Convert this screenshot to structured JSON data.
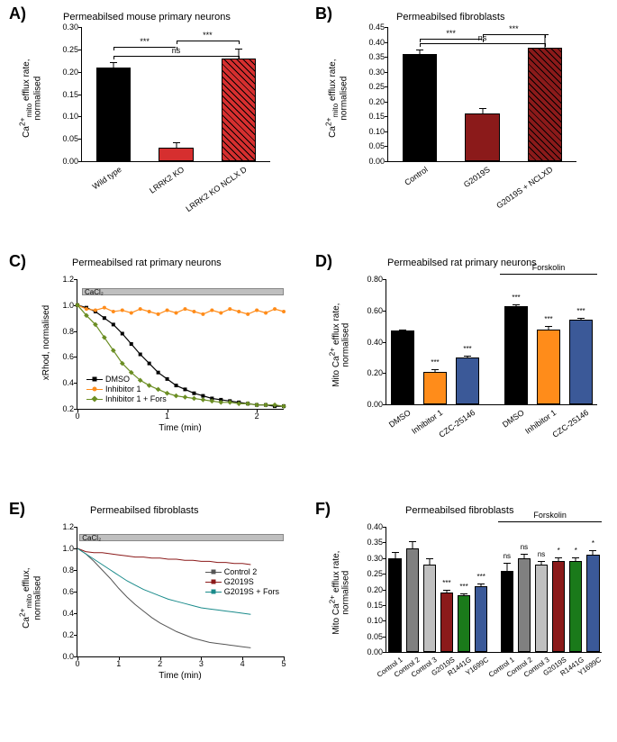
{
  "panelA": {
    "label": "A)",
    "title": "Permeabilsed mouse primary neurons",
    "ylabel": "Ca²⁺ₘᵢₜₒ efflux rate,\nnormalised",
    "ylim": [
      0,
      0.3
    ],
    "ytick_step": 0.05,
    "categories": [
      "Wild type",
      "LRRK2 KO",
      "LRRK2 KO NCLX D"
    ],
    "values": [
      0.21,
      0.03,
      0.23
    ],
    "errors": [
      0.012,
      0.012,
      0.022
    ],
    "colors": [
      "#000000",
      "#d62f2f",
      "#d62f2f"
    ],
    "hatched": [
      false,
      false,
      true
    ],
    "sig": [
      {
        "from": 0,
        "to": 1,
        "y": 0.255,
        "text": "***"
      },
      {
        "from": 1,
        "to": 2,
        "y": 0.27,
        "text": "***"
      },
      {
        "from": 0,
        "to": 2,
        "y": 0.235,
        "text": "ns"
      }
    ],
    "background_color": "#ffffff",
    "bar_width": 0.55
  },
  "panelB": {
    "label": "B)",
    "title": "Permeabilsed fibroblasts",
    "ylabel": "Ca²⁺ₘᵢₜₒ efflux rate,\nnormalised",
    "ylim": [
      0,
      0.45
    ],
    "ytick_step": 0.05,
    "categories": [
      "Control",
      "G2019S",
      "G2019S + NCLXD"
    ],
    "values": [
      0.36,
      0.16,
      0.38
    ],
    "errors": [
      0.015,
      0.018,
      0.045
    ],
    "colors": [
      "#000000",
      "#8b1a1a",
      "#8b1a1a"
    ],
    "hatched": [
      false,
      false,
      true
    ],
    "sig": [
      {
        "from": 0,
        "to": 1,
        "y": 0.41,
        "text": "***"
      },
      {
        "from": 1,
        "to": 2,
        "y": 0.425,
        "text": "***"
      },
      {
        "from": 0,
        "to": 2,
        "y": 0.395,
        "text": "ns"
      }
    ],
    "bar_width": 0.55
  },
  "panelC": {
    "label": "C)",
    "title": "Permeabilsed rat primary neurons",
    "ylabel": "xRhod, normalised",
    "xlabel": "Time (min)",
    "cacl2": "CaCl₂",
    "ylim": [
      0.2,
      1.2
    ],
    "ytick_step": 0.2,
    "xlim": [
      0,
      2.3
    ],
    "xtick_step": 1,
    "series": [
      {
        "name": "DMSO",
        "color": "#000000",
        "marker": "square",
        "data": [
          [
            0,
            1.0
          ],
          [
            0.1,
            0.98
          ],
          [
            0.2,
            0.95
          ],
          [
            0.3,
            0.9
          ],
          [
            0.4,
            0.85
          ],
          [
            0.5,
            0.78
          ],
          [
            0.6,
            0.7
          ],
          [
            0.7,
            0.62
          ],
          [
            0.8,
            0.55
          ],
          [
            0.9,
            0.48
          ],
          [
            1.0,
            0.43
          ],
          [
            1.1,
            0.38
          ],
          [
            1.2,
            0.35
          ],
          [
            1.3,
            0.32
          ],
          [
            1.4,
            0.3
          ],
          [
            1.5,
            0.28
          ],
          [
            1.6,
            0.27
          ],
          [
            1.7,
            0.26
          ],
          [
            1.8,
            0.25
          ],
          [
            1.9,
            0.24
          ],
          [
            2.0,
            0.23
          ],
          [
            2.1,
            0.23
          ],
          [
            2.2,
            0.22
          ],
          [
            2.3,
            0.22
          ]
        ]
      },
      {
        "name": "Inhibitor 1",
        "color": "#ff8c1a",
        "marker": "circle",
        "data": [
          [
            0,
            1.0
          ],
          [
            0.1,
            0.97
          ],
          [
            0.2,
            0.96
          ],
          [
            0.3,
            0.98
          ],
          [
            0.4,
            0.95
          ],
          [
            0.5,
            0.96
          ],
          [
            0.6,
            0.94
          ],
          [
            0.7,
            0.97
          ],
          [
            0.8,
            0.95
          ],
          [
            0.9,
            0.93
          ],
          [
            1.0,
            0.96
          ],
          [
            1.1,
            0.94
          ],
          [
            1.2,
            0.97
          ],
          [
            1.3,
            0.95
          ],
          [
            1.4,
            0.93
          ],
          [
            1.5,
            0.96
          ],
          [
            1.6,
            0.94
          ],
          [
            1.7,
            0.97
          ],
          [
            1.8,
            0.95
          ],
          [
            1.9,
            0.93
          ],
          [
            2.0,
            0.96
          ],
          [
            2.1,
            0.94
          ],
          [
            2.2,
            0.97
          ],
          [
            2.3,
            0.95
          ]
        ]
      },
      {
        "name": "Inhibitor 1 + Fors",
        "color": "#6b8e23",
        "marker": "diamond",
        "data": [
          [
            0,
            1.0
          ],
          [
            0.1,
            0.92
          ],
          [
            0.2,
            0.85
          ],
          [
            0.3,
            0.75
          ],
          [
            0.4,
            0.65
          ],
          [
            0.5,
            0.55
          ],
          [
            0.6,
            0.48
          ],
          [
            0.7,
            0.42
          ],
          [
            0.8,
            0.38
          ],
          [
            0.9,
            0.35
          ],
          [
            1.0,
            0.32
          ],
          [
            1.1,
            0.3
          ],
          [
            1.2,
            0.29
          ],
          [
            1.3,
            0.28
          ],
          [
            1.4,
            0.27
          ],
          [
            1.5,
            0.26
          ],
          [
            1.6,
            0.25
          ],
          [
            1.7,
            0.25
          ],
          [
            1.8,
            0.24
          ],
          [
            1.9,
            0.24
          ],
          [
            2.0,
            0.23
          ],
          [
            2.1,
            0.23
          ],
          [
            2.2,
            0.23
          ],
          [
            2.3,
            0.22
          ]
        ]
      }
    ]
  },
  "panelD": {
    "label": "D)",
    "title": "Permeabilsed rat primary neurons",
    "ylabel": "Mito Ca²⁺ efflux rate,\nnormalised",
    "ylim": [
      0,
      0.8
    ],
    "ytick_step": 0.2,
    "group2_label": "Forskolin",
    "categories": [
      "DMSO",
      "Inhibitor 1",
      "CZC-25146",
      "DMSO",
      "Inhibitor 1",
      "CZC-25146"
    ],
    "values": [
      0.47,
      0.21,
      0.3,
      0.63,
      0.48,
      0.54
    ],
    "errors": [
      0.01,
      0.015,
      0.012,
      0.008,
      0.02,
      0.015
    ],
    "colors": [
      "#000000",
      "#ff8c1a",
      "#3b5998",
      "#000000",
      "#ff8c1a",
      "#3b5998"
    ],
    "stars": [
      "",
      "***",
      "***",
      "***",
      "***",
      "***"
    ],
    "group2_start": 3,
    "bar_width": 0.7
  },
  "panelE": {
    "label": "E)",
    "title": "Permeabilsed fibroblasts",
    "ylabel": "Ca²⁺ₘᵢₜₒ efflux,\nnormalised",
    "xlabel": "Time (min)",
    "cacl2": "CaCl₂",
    "ylim": [
      0,
      1.2
    ],
    "ytick_step": 0.2,
    "xlim": [
      0,
      5
    ],
    "xtick_step": 1,
    "series": [
      {
        "name": "Control 2",
        "color": "#555555",
        "data": [
          [
            0,
            1.0
          ],
          [
            0.2,
            0.95
          ],
          [
            0.4,
            0.88
          ],
          [
            0.6,
            0.8
          ],
          [
            0.8,
            0.72
          ],
          [
            1.0,
            0.63
          ],
          [
            1.2,
            0.55
          ],
          [
            1.4,
            0.48
          ],
          [
            1.6,
            0.42
          ],
          [
            1.8,
            0.36
          ],
          [
            2.0,
            0.31
          ],
          [
            2.2,
            0.27
          ],
          [
            2.4,
            0.23
          ],
          [
            2.6,
            0.2
          ],
          [
            2.8,
            0.17
          ],
          [
            3.0,
            0.15
          ],
          [
            3.2,
            0.13
          ],
          [
            3.4,
            0.12
          ],
          [
            3.6,
            0.11
          ],
          [
            3.8,
            0.1
          ],
          [
            4.0,
            0.09
          ],
          [
            4.2,
            0.08
          ]
        ]
      },
      {
        "name": "G2019S",
        "color": "#8b1a1a",
        "data": [
          [
            0,
            1.0
          ],
          [
            0.2,
            0.97
          ],
          [
            0.4,
            0.96
          ],
          [
            0.6,
            0.96
          ],
          [
            0.8,
            0.95
          ],
          [
            1.0,
            0.94
          ],
          [
            1.2,
            0.93
          ],
          [
            1.4,
            0.92
          ],
          [
            1.6,
            0.92
          ],
          [
            1.8,
            0.91
          ],
          [
            2.0,
            0.91
          ],
          [
            2.2,
            0.9
          ],
          [
            2.4,
            0.9
          ],
          [
            2.6,
            0.89
          ],
          [
            2.8,
            0.89
          ],
          [
            3.0,
            0.88
          ],
          [
            3.2,
            0.88
          ],
          [
            3.4,
            0.87
          ],
          [
            3.6,
            0.87
          ],
          [
            3.8,
            0.86
          ],
          [
            4.0,
            0.86
          ],
          [
            4.2,
            0.85
          ]
        ]
      },
      {
        "name": "G2019S + Fors",
        "color": "#1a8b8b",
        "data": [
          [
            0,
            1.0
          ],
          [
            0.2,
            0.95
          ],
          [
            0.4,
            0.9
          ],
          [
            0.6,
            0.85
          ],
          [
            0.8,
            0.8
          ],
          [
            1.0,
            0.75
          ],
          [
            1.2,
            0.7
          ],
          [
            1.4,
            0.66
          ],
          [
            1.6,
            0.62
          ],
          [
            1.8,
            0.59
          ],
          [
            2.0,
            0.56
          ],
          [
            2.2,
            0.53
          ],
          [
            2.4,
            0.51
          ],
          [
            2.6,
            0.49
          ],
          [
            2.8,
            0.47
          ],
          [
            3.0,
            0.45
          ],
          [
            3.2,
            0.44
          ],
          [
            3.4,
            0.43
          ],
          [
            3.6,
            0.42
          ],
          [
            3.8,
            0.41
          ],
          [
            4.0,
            0.4
          ],
          [
            4.2,
            0.39
          ]
        ]
      }
    ]
  },
  "panelF": {
    "label": "F)",
    "title": "Permeabilsed fibroblasts",
    "ylabel": "Mito Ca²⁺ efflux rate,\nnormalised",
    "ylim": [
      0,
      0.4
    ],
    "ytick_step": 0.05,
    "group2_label": "Forskolin",
    "categories": [
      "Control 1",
      "Control 2",
      "Control 3",
      "G2019S",
      "R1441G",
      "Y1699C",
      "Control 1",
      "Control 2",
      "Control 3",
      "G2019S",
      "R1441G",
      "Y1699C"
    ],
    "values": [
      0.3,
      0.33,
      0.28,
      0.19,
      0.18,
      0.21,
      0.26,
      0.3,
      0.28,
      0.29,
      0.29,
      0.31
    ],
    "errors": [
      0.02,
      0.025,
      0.02,
      0.008,
      0.006,
      0.008,
      0.025,
      0.015,
      0.012,
      0.012,
      0.012,
      0.015
    ],
    "colors": [
      "#000000",
      "#808080",
      "#c0c0c0",
      "#8b1a1a",
      "#1a7a1a",
      "#3b5998",
      "#000000",
      "#808080",
      "#c0c0c0",
      "#8b1a1a",
      "#1a7a1a",
      "#3b5998"
    ],
    "stars": [
      "",
      "",
      "",
      "***",
      "***",
      "***",
      "ns",
      "ns",
      "ns",
      "*",
      "*",
      "*"
    ],
    "group2_start": 6,
    "bar_width": 0.75
  }
}
